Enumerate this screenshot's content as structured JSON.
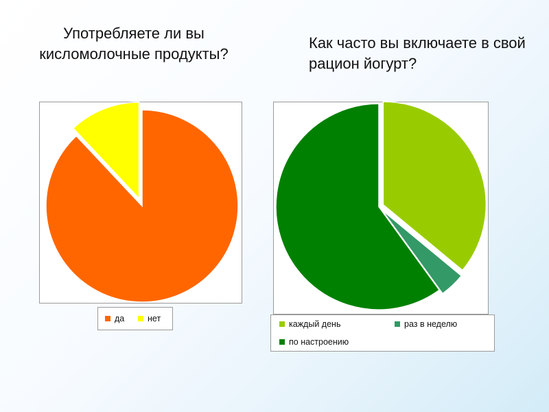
{
  "chart_data": [
    {
      "type": "pie",
      "title": "Употребляете ли вы кисломолочные продукты?",
      "categories": [
        "да",
        "нет"
      ],
      "values": [
        88,
        12
      ],
      "colors": [
        "#ff6600",
        "#ffff00"
      ],
      "exploded": [
        false,
        true
      ],
      "legend_position": "bottom"
    },
    {
      "type": "pie",
      "title": "Как часто вы включаете в свой рацион йогурт?",
      "categories": [
        "каждый день",
        "раз в неделю",
        "по настроению"
      ],
      "values": [
        36,
        4,
        60
      ],
      "colors": [
        "#99cc00",
        "#339966",
        "#008000"
      ],
      "exploded": [
        true,
        true,
        false
      ],
      "legend_position": "bottom"
    }
  ]
}
